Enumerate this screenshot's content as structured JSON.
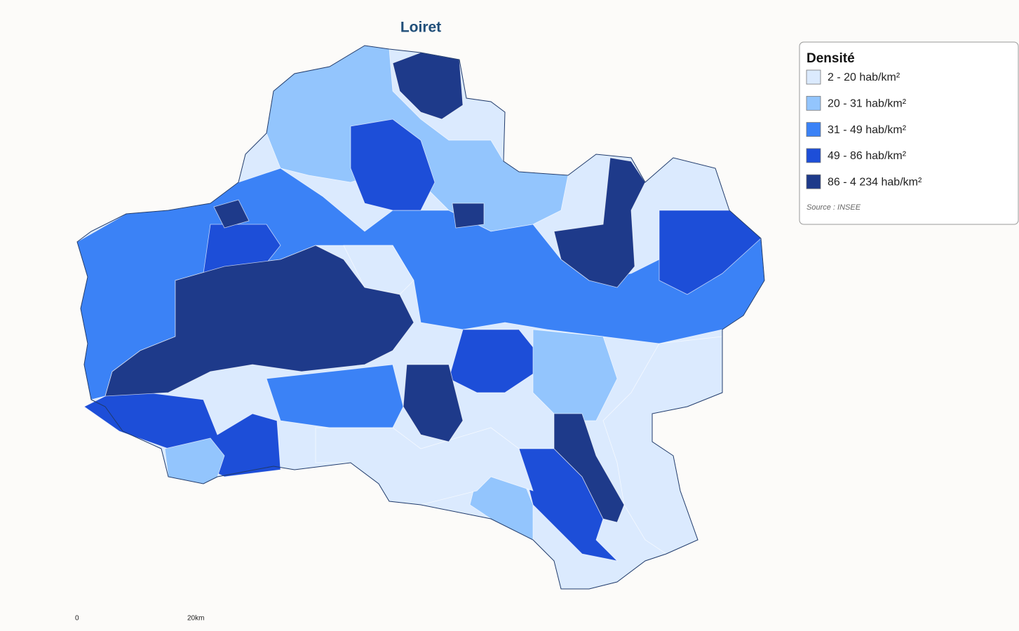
{
  "title": "Loiret",
  "legend": {
    "title": "Densité",
    "items": [
      {
        "label": "2 - 20 hab/km²",
        "color": "#dbeafe"
      },
      {
        "label": "20 - 31 hab/km²",
        "color": "#93c5fd"
      },
      {
        "label": "31 - 49 hab/km²",
        "color": "#3b82f6"
      },
      {
        "label": "49 - 86 hab/km²",
        "color": "#1d4ed8"
      },
      {
        "label": "86 - 4 234 hab/km²",
        "color": "#1e3a8a"
      }
    ],
    "source": "Source : INSEE"
  },
  "scale": {
    "start": "0",
    "end": "20km"
  }
}
